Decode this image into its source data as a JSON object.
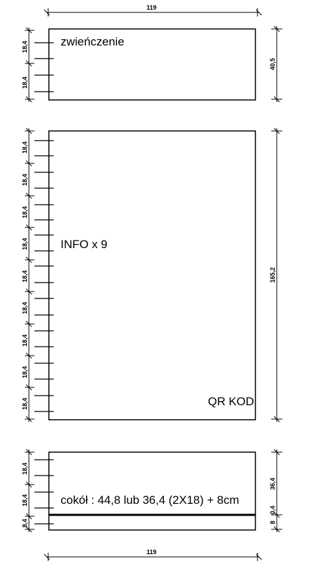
{
  "top_width_label": "119",
  "bottom_width_label": "119",
  "panel_top": {
    "label": "zwieńczenie",
    "spacing_labels": [
      "18,4",
      "18,4"
    ],
    "height_label": "40,5"
  },
  "panel_middle": {
    "label": "INFO x 9",
    "corner_label": "QR KOD",
    "spacing_labels": [
      "18,4",
      "18,4",
      "18,4",
      "18,4",
      "18,4",
      "18,4",
      "18,4",
      "18,4",
      "18,4"
    ],
    "height_label": "165,2"
  },
  "panel_bottom": {
    "label": "cokół : 44,8 lub 36,4 (2X18) + 8cm",
    "spacing_labels": [
      "18,4",
      "18,4",
      "8,4"
    ],
    "height_labels": [
      "36,4",
      "8",
      "0,4"
    ]
  }
}
